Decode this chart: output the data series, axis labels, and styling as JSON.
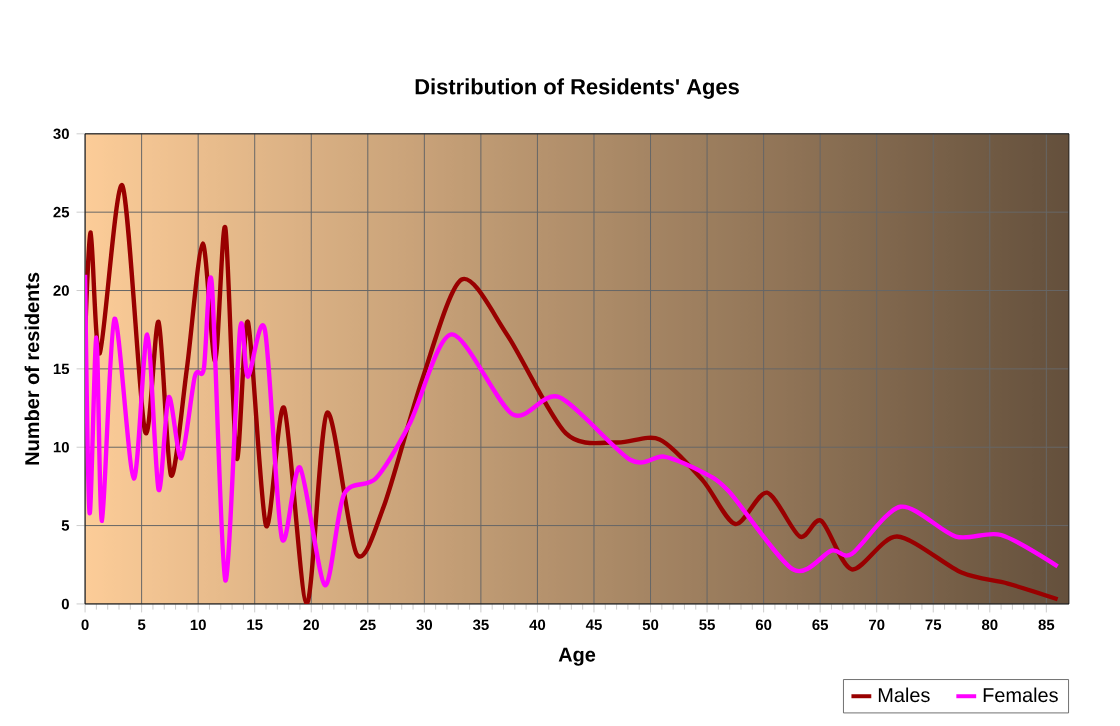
{
  "chart_data": {
    "type": "line",
    "title": "Distribution of Residents' Ages",
    "xlabel": "Age",
    "ylabel": "Number of residents",
    "xlim": [
      0,
      87
    ],
    "ylim": [
      0,
      30
    ],
    "xticks": [
      0,
      5,
      10,
      15,
      20,
      25,
      30,
      35,
      40,
      45,
      50,
      55,
      60,
      65,
      70,
      75,
      80,
      85
    ],
    "yticks": [
      0,
      5,
      10,
      15,
      20,
      25,
      30
    ],
    "grid": true,
    "legend": "bottom right",
    "marker": "none",
    "line_style": "solid",
    "series": [
      {
        "name": "Males",
        "color": "#990000",
        "x": [
          0,
          0.5,
          1.3,
          3.3,
          5.3,
          6.5,
          7.6,
          9,
          10.4,
          11.5,
          12.4,
          13.4,
          14.4,
          16,
          17.6,
          19.6,
          21.4,
          24,
          26.4,
          29.8,
          33.3,
          37.3,
          42.5,
          47,
          50.8,
          54.6,
          57.5,
          60.3,
          63.2,
          65.1,
          67.8,
          71.8,
          77.5,
          81.6,
          86
        ],
        "values": [
          17,
          23.7,
          16,
          26.7,
          11,
          18,
          8.2,
          15,
          23,
          15.5,
          24,
          9.3,
          18,
          5,
          12.5,
          0,
          12.2,
          3.2,
          6.2,
          14.3,
          20.7,
          17.2,
          10.9,
          10.3,
          10.5,
          7.9,
          5.1,
          7.1,
          4.3,
          5.3,
          2.2,
          4.3,
          2,
          1.3,
          0.3
        ]
      },
      {
        "name": "Females",
        "color": "#ff00ff",
        "x": [
          0,
          0.4,
          1,
          1.5,
          2.6,
          4.3,
          5.5,
          6.5,
          7.4,
          8.5,
          9.7,
          10.5,
          11.2,
          12.4,
          13.7,
          14.4,
          15.9,
          17.4,
          19,
          21.2,
          22.9,
          25.7,
          28.7,
          32.4,
          37.8,
          41.9,
          48.2,
          51.2,
          54.6,
          56.9,
          62.6,
          66,
          67.8,
          72.1,
          77,
          81,
          86
        ],
        "values": [
          21,
          5.8,
          17,
          5.3,
          18.2,
          8,
          17.2,
          7.3,
          13.2,
          9.3,
          14.5,
          15,
          20.5,
          1.5,
          17.5,
          14.5,
          17.5,
          4.2,
          8.7,
          1.2,
          7,
          8,
          11.5,
          17.2,
          12.1,
          13.2,
          9.2,
          9.4,
          8.4,
          7.2,
          2.2,
          3.4,
          3.2,
          6.2,
          4.3,
          4.4,
          2.4
        ]
      }
    ]
  }
}
